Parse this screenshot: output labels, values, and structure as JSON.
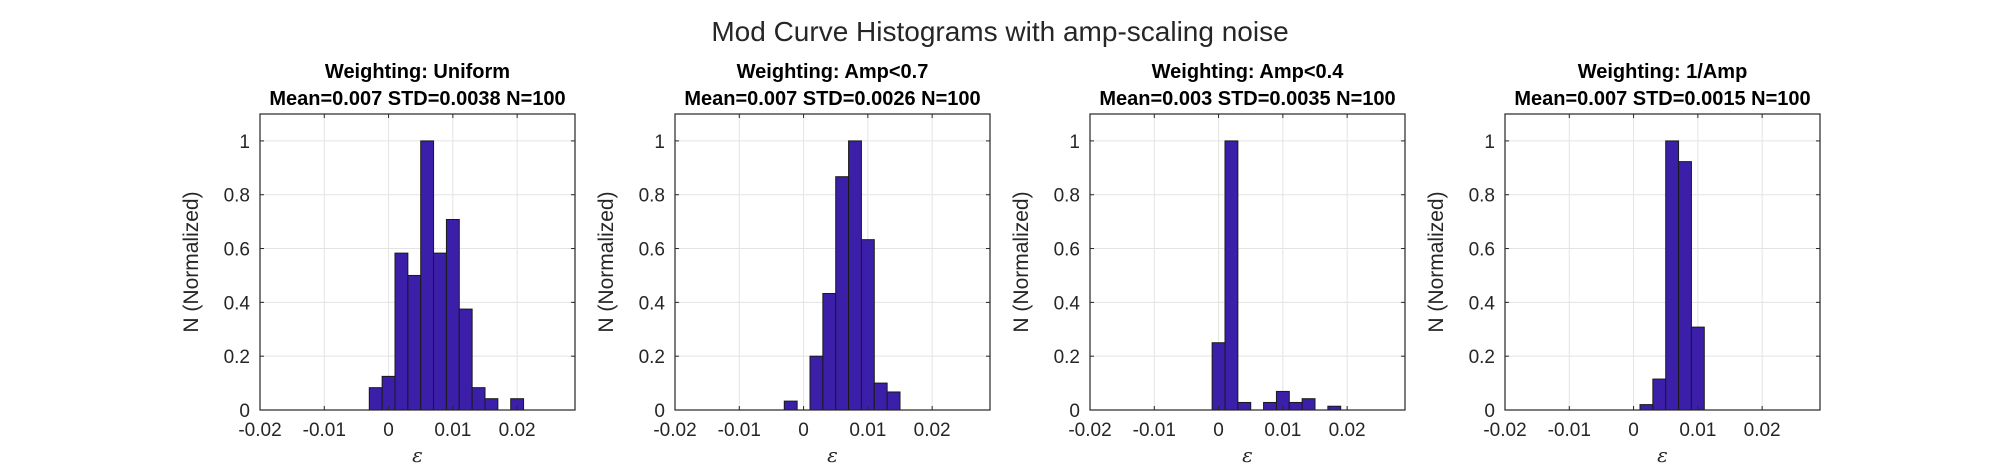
{
  "figure": {
    "suptitle": "Mod Curve Histograms with amp-scaling noise"
  },
  "colors": {
    "bar_fill": "#3b1fa8",
    "bar_edge": "#1a1a1a",
    "grid": "#e3e3e3",
    "axis": "#262626"
  },
  "chart_data": [
    {
      "type": "bar",
      "title": "Weighting: Uniform",
      "subtitle": "Mean=0.007 STD=0.0038 N=100",
      "xlabel": "ε",
      "ylabel": "N (Normalized)",
      "xlim": [
        -0.02,
        0.029
      ],
      "ylim": [
        0,
        1.1
      ],
      "xticks": [
        "-0.02",
        "-0.01",
        "0",
        "0.01",
        "0.02"
      ],
      "yticks": [
        "0",
        "0.2",
        "0.4",
        "0.6",
        "0.8",
        "1"
      ],
      "grid": true,
      "bin_width": 0.002,
      "bins": [
        [
          -0.003,
          0.083
        ],
        [
          -0.001,
          0.125
        ],
        [
          0.001,
          0.583
        ],
        [
          0.003,
          0.5
        ],
        [
          0.005,
          1.0
        ],
        [
          0.007,
          0.583
        ],
        [
          0.009,
          0.708
        ],
        [
          0.011,
          0.375
        ],
        [
          0.013,
          0.083
        ],
        [
          0.015,
          0.042
        ],
        [
          0.017,
          0.0
        ],
        [
          0.019,
          0.042
        ]
      ]
    },
    {
      "type": "bar",
      "title": "Weighting: Amp<0.7",
      "subtitle": "Mean=0.007 STD=0.0026 N=100",
      "xlabel": "ε",
      "ylabel": "N (Normalized)",
      "xlim": [
        -0.02,
        0.029
      ],
      "ylim": [
        0,
        1.1
      ],
      "xticks": [
        "-0.02",
        "-0.01",
        "0",
        "0.01",
        "0.02"
      ],
      "yticks": [
        "0",
        "0.2",
        "0.4",
        "0.6",
        "0.8",
        "1"
      ],
      "grid": true,
      "bin_width": 0.002,
      "bins": [
        [
          -0.003,
          0.033
        ],
        [
          -0.001,
          0.0
        ],
        [
          0.001,
          0.2
        ],
        [
          0.003,
          0.433
        ],
        [
          0.005,
          0.867
        ],
        [
          0.007,
          1.0
        ],
        [
          0.009,
          0.633
        ],
        [
          0.011,
          0.1
        ],
        [
          0.013,
          0.067
        ]
      ]
    },
    {
      "type": "bar",
      "title": "Weighting: Amp<0.4",
      "subtitle": "Mean=0.003 STD=0.0035 N=100",
      "xlabel": "ε",
      "ylabel": "N (Normalized)",
      "xlim": [
        -0.02,
        0.029
      ],
      "ylim": [
        0,
        1.1
      ],
      "xticks": [
        "-0.02",
        "-0.01",
        "0",
        "0.01",
        "0.02"
      ],
      "yticks": [
        "0",
        "0.2",
        "0.4",
        "0.6",
        "0.8",
        "1"
      ],
      "grid": true,
      "bin_width": 0.002,
      "bins": [
        [
          -0.001,
          0.25
        ],
        [
          0.001,
          1.0
        ],
        [
          0.003,
          0.028
        ],
        [
          0.005,
          0.0
        ],
        [
          0.007,
          0.028
        ],
        [
          0.009,
          0.069
        ],
        [
          0.011,
          0.028
        ],
        [
          0.013,
          0.042
        ],
        [
          0.015,
          0.0
        ],
        [
          0.017,
          0.014
        ]
      ]
    },
    {
      "type": "bar",
      "title": "Weighting: 1/Amp",
      "subtitle": "Mean=0.007 STD=0.0015 N=100",
      "xlabel": "ε",
      "ylabel": "N (Normalized)",
      "xlim": [
        -0.02,
        0.029
      ],
      "ylim": [
        0,
        1.1
      ],
      "xticks": [
        "-0.02",
        "-0.01",
        "0",
        "0.01",
        "0.02"
      ],
      "yticks": [
        "0",
        "0.2",
        "0.4",
        "0.6",
        "0.8",
        "1"
      ],
      "grid": true,
      "bin_width": 0.002,
      "bins": [
        [
          0.001,
          0.02
        ],
        [
          0.003,
          0.115
        ],
        [
          0.005,
          1.0
        ],
        [
          0.007,
          0.923
        ],
        [
          0.009,
          0.308
        ]
      ]
    }
  ]
}
